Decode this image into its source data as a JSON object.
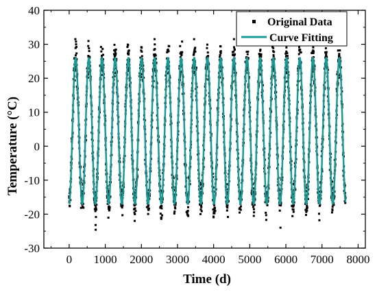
{
  "chart_data": {
    "type": "line",
    "title": "",
    "xlabel": "Time (d)",
    "ylabel": "Temperature (°C)",
    "xlim": [
      -700,
      8200
    ],
    "ylim": [
      -30,
      40
    ],
    "x_ticks": [
      0,
      1000,
      2000,
      3000,
      4000,
      5000,
      6000,
      7000,
      8000
    ],
    "y_ticks": [
      -30,
      -20,
      -10,
      0,
      10,
      20,
      30,
      40
    ],
    "grid": false,
    "legend_position": "top-right",
    "colors": {
      "original": "#000000",
      "fit": "#1a9a96"
    },
    "series": [
      {
        "name": "Original Data",
        "style": "scatter",
        "x_range": [
          0,
          7650
        ],
        "period_days": 365,
        "approx_min": -30,
        "approx_max": 31.5
      },
      {
        "name": "Curve Fitting",
        "style": "line",
        "model": "sinusoid",
        "x_range": [
          0,
          7650
        ],
        "mean": 4.5,
        "amplitude": 21.5,
        "period_days": 365,
        "peak_day": 180
      }
    ]
  }
}
